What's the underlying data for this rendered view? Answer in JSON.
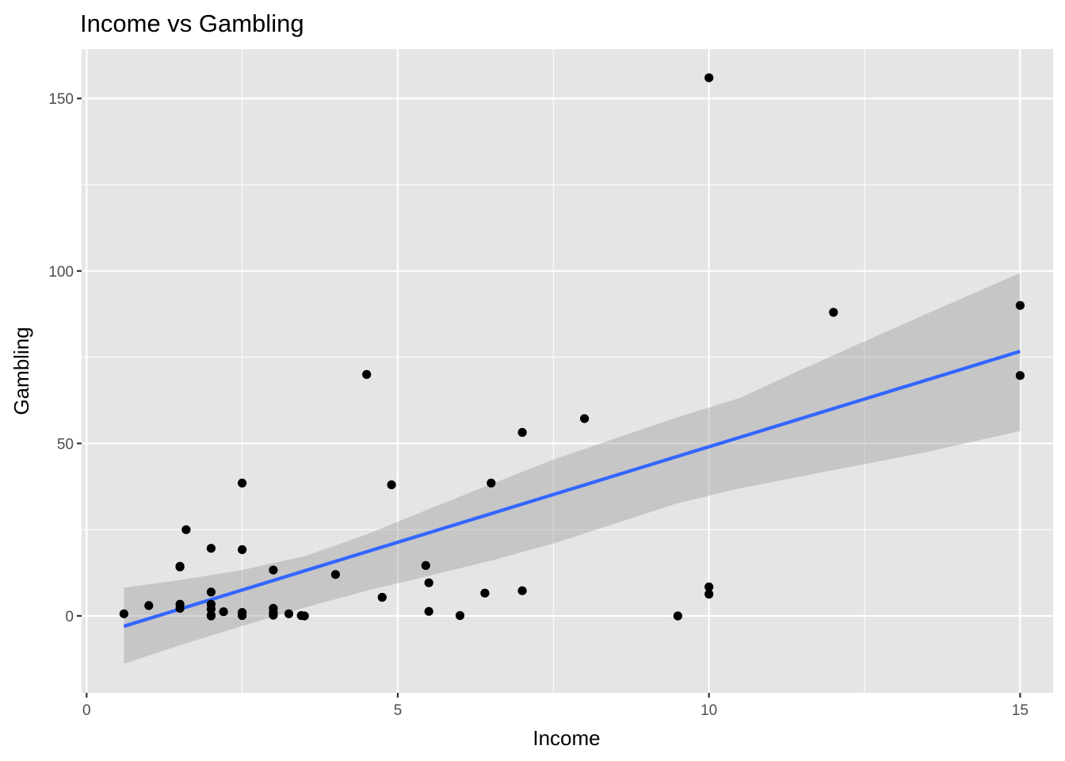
{
  "chart_data": {
    "type": "scatter",
    "title": "Income vs Gambling",
    "xlabel": "Income",
    "ylabel": "Gambling",
    "xlim": [
      -0.08,
      15.53
    ],
    "ylim": [
      -22.3,
      164.3
    ],
    "x_ticks": [
      0,
      5,
      10,
      15
    ],
    "y_ticks": [
      0,
      50,
      100,
      150
    ],
    "grid": true,
    "colors": {
      "panel": "#e5e5e5",
      "grid": "#ffffff",
      "points": "#000000",
      "line": "#3366ff",
      "ribbon": "#999999"
    },
    "points": {
      "x": [
        0.6,
        1.0,
        1.5,
        1.5,
        1.5,
        1.5,
        1.6,
        2.0,
        2.0,
        2.0,
        2.0,
        2.0,
        2.0,
        2.2,
        2.5,
        2.5,
        2.5,
        2.5,
        3.0,
        3.0,
        3.0,
        3.0,
        3.25,
        3.45,
        3.5,
        4.0,
        4.5,
        4.75,
        4.9,
        5.45,
        5.5,
        5.5,
        6.0,
        6.4,
        6.5,
        7.0,
        7.0,
        8.0,
        9.5,
        10.0,
        10.0,
        10.0,
        12.0,
        15.0,
        15.0
      ],
      "y": [
        0.6,
        3.0,
        14.4,
        14.2,
        3.4,
        2.2,
        25.0,
        19.6,
        6.9,
        3.4,
        2.0,
        0.2,
        0.0,
        1.2,
        38.5,
        19.2,
        1.0,
        0.1,
        13.3,
        2.2,
        1.0,
        0.2,
        0.6,
        0.1,
        0.0,
        12.0,
        70.0,
        5.4,
        38.0,
        14.6,
        9.6,
        1.3,
        0.1,
        6.6,
        38.5,
        53.2,
        7.3,
        57.2,
        0.0,
        156.0,
        8.4,
        6.3,
        88.0,
        90.0,
        69.7
      ]
    },
    "trend_line": {
      "method": "linear",
      "x": [
        0.6,
        15.0
      ],
      "y": [
        -3.0,
        76.7
      ]
    },
    "confidence_band": {
      "x": [
        0.6,
        1.5,
        2.5,
        3.5,
        4.5,
        5.5,
        6.5,
        7.5,
        8.5,
        9.5,
        10.5,
        11.5,
        12.5,
        13.5,
        15.0
      ],
      "lower": [
        -13.9,
        -8.5,
        -2.9,
        2.4,
        7.3,
        11.6,
        16.0,
        21.0,
        26.8,
        32.7,
        37.0,
        40.5,
        44.0,
        47.5,
        53.6
      ],
      "upper": [
        8.2,
        10.4,
        13.3,
        17.3,
        23.6,
        31.0,
        38.2,
        45.3,
        51.5,
        57.6,
        63.2,
        71.5,
        79.6,
        87.6,
        99.4
      ]
    }
  }
}
